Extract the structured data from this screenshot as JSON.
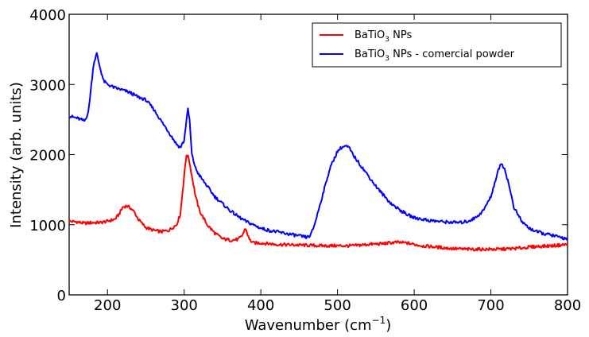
{
  "chart_data": {
    "type": "line",
    "title": "",
    "xlabel": "Wavenumber (cm",
    "xlabel_superscript": "−1",
    "xlabel_suffix": ")",
    "ylabel": "Intensity (arb. units)",
    "xlim": [
      150,
      800
    ],
    "ylim": [
      0,
      4000
    ],
    "xticks": [
      200,
      300,
      400,
      500,
      600,
      700,
      800
    ],
    "xtick_labels": [
      "200",
      "300",
      "400",
      "500",
      "600",
      "700",
      "800"
    ],
    "yticks": [
      0,
      1000,
      2000,
      3000,
      4000
    ],
    "ytick_labels": [
      "0",
      "1000",
      "2000",
      "3000",
      "4000"
    ],
    "grid": false,
    "legend_position": "top-right",
    "series": [
      {
        "name": "BaTiO3 NPs",
        "legend_base": "BaTiO",
        "legend_sub": "3",
        "legend_rest": " NPs",
        "color": "#ff0000",
        "x": [
          150,
          160,
          170,
          180,
          190,
          200,
          210,
          215,
          220,
          225,
          230,
          235,
          240,
          250,
          260,
          270,
          280,
          290,
          295,
          300,
          303,
          306,
          310,
          315,
          320,
          330,
          340,
          350,
          360,
          370,
          375,
          380,
          385,
          390,
          400,
          420,
          450,
          480,
          500,
          520,
          540,
          560,
          575,
          590,
          610,
          630,
          650,
          670,
          690,
          710,
          730,
          760,
          780,
          800
        ],
        "y": [
          1050,
          1040,
          1020,
          1030,
          1030,
          1050,
          1080,
          1150,
          1250,
          1270,
          1240,
          1180,
          1080,
          960,
          920,
          900,
          920,
          1000,
          1150,
          1700,
          2000,
          1950,
          1700,
          1400,
          1200,
          1000,
          880,
          800,
          780,
          790,
          830,
          950,
          790,
          740,
          740,
          720,
          710,
          700,
          700,
          700,
          720,
          730,
          750,
          740,
          700,
          680,
          660,
          650,
          650,
          650,
          660,
          690,
          700,
          720
        ]
      },
      {
        "name": "BaTiO3 NPs - comercial powder",
        "legend_base": "BaTiO",
        "legend_sub": "3",
        "legend_rest": " NPs - comercial powder",
        "color": "#0000ff",
        "x": [
          150,
          160,
          170,
          175,
          178,
          182,
          186,
          190,
          195,
          200,
          210,
          220,
          230,
          240,
          250,
          260,
          270,
          280,
          290,
          295,
          300,
          303,
          305,
          307,
          310,
          315,
          320,
          330,
          340,
          350,
          360,
          370,
          380,
          390,
          400,
          410,
          420,
          430,
          440,
          450,
          460,
          465,
          470,
          480,
          490,
          500,
          505,
          510,
          515,
          520,
          530,
          540,
          550,
          560,
          570,
          580,
          590,
          600,
          620,
          640,
          660,
          670,
          680,
          690,
          700,
          705,
          710,
          713,
          718,
          725,
          730,
          740,
          750,
          760,
          770,
          780,
          790,
          800
        ],
        "y": [
          2550,
          2520,
          2480,
          2600,
          2900,
          3300,
          3440,
          3250,
          3050,
          3000,
          2950,
          2920,
          2880,
          2820,
          2780,
          2650,
          2480,
          2320,
          2150,
          2100,
          2200,
          2500,
          2640,
          2500,
          2000,
          1800,
          1700,
          1550,
          1400,
          1300,
          1200,
          1120,
          1050,
          1000,
          950,
          920,
          900,
          880,
          860,
          840,
          820,
          850,
          1000,
          1400,
          1800,
          2050,
          2100,
          2120,
          2100,
          2000,
          1850,
          1700,
          1550,
          1420,
          1300,
          1220,
          1150,
          1100,
          1060,
          1040,
          1030,
          1050,
          1100,
          1200,
          1400,
          1600,
          1780,
          1880,
          1800,
          1500,
          1250,
          1050,
          950,
          900,
          870,
          850,
          820,
          800
        ]
      }
    ]
  }
}
